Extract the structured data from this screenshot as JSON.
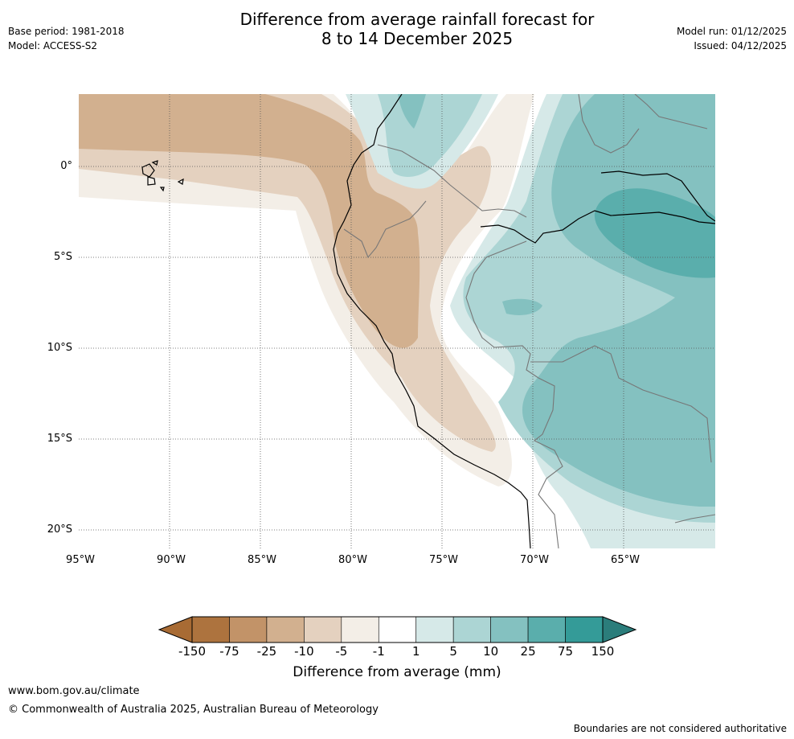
{
  "header": {
    "title_line1": "Difference from average rainfall forecast for",
    "title_line2": "8 to 14 December 2025",
    "base_period": "Base period: 1981-2018",
    "model": "Model: ACCESS-S2",
    "model_run": "Model run: 01/12/2025",
    "issued": "Issued: 04/12/2025"
  },
  "map": {
    "region": "Western South America",
    "lat_labels": [
      "0°",
      "5°S",
      "10°S",
      "15°S",
      "20°S"
    ],
    "lon_labels": [
      "95°W",
      "90°W",
      "85°W",
      "80°W",
      "75°W",
      "70°W",
      "65°W"
    ]
  },
  "legend": {
    "ticks": [
      "-150",
      "-75",
      "-25",
      "-10",
      "-5",
      "-1",
      "1",
      "5",
      "10",
      "25",
      "75",
      "150"
    ],
    "colors": [
      "#a86b34",
      "#ad733e",
      "#c29368",
      "#d2b08f",
      "#e4d1bf",
      "#f3eee7",
      "#ffffff",
      "#d6e9e8",
      "#acd5d4",
      "#84c1c0",
      "#5aaeac",
      "#349b98",
      "#2b7d7b"
    ],
    "title": "Difference from average (mm)"
  },
  "footer": {
    "website": "www.bom.gov.au/climate",
    "copyright": "© Commonwealth of Australia 2025, Australian Bureau of Meteorology",
    "disclaimer": "Boundaries are not considered authoritative"
  }
}
